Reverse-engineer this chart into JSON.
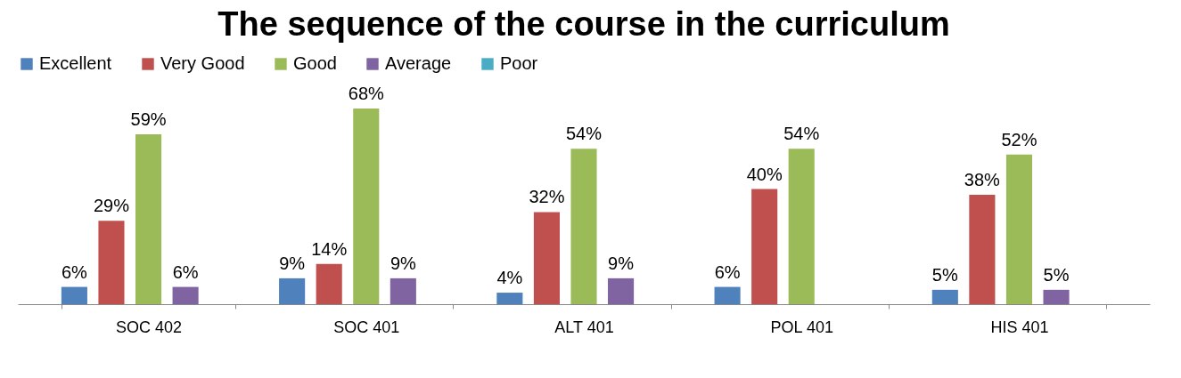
{
  "chart_data": {
    "type": "bar",
    "title": "The sequence of the course in the curriculum",
    "categories": [
      "SOC 402",
      "SOC 401",
      "ALT 401",
      "POL 401",
      "HIS 401"
    ],
    "series": [
      {
        "name": "Excellent",
        "color": "#4f81bd",
        "values": [
          6,
          9,
          4,
          6,
          5
        ],
        "value_labels": [
          "6%",
          "9%",
          "4%",
          "6%",
          "5%"
        ]
      },
      {
        "name": "Very Good",
        "color": "#c0504d",
        "values": [
          29,
          14,
          32,
          40,
          38
        ],
        "value_labels": [
          "29%",
          "14%",
          "32%",
          "40%",
          "38%"
        ]
      },
      {
        "name": "Good",
        "color": "#9bbb59",
        "values": [
          59,
          68,
          54,
          54,
          52
        ],
        "value_labels": [
          "59%",
          "68%",
          "54%",
          "54%",
          "52%"
        ]
      },
      {
        "name": "Average",
        "color": "#8064a2",
        "values": [
          6,
          9,
          9,
          null,
          5
        ],
        "value_labels": [
          "6%",
          "9%",
          "9%",
          null,
          "5%"
        ]
      },
      {
        "name": "Poor",
        "color": "#4bacc6",
        "values": [
          null,
          null,
          null,
          null,
          null
        ],
        "value_labels": [
          null,
          null,
          null,
          null,
          null
        ]
      }
    ],
    "legend": "top"
  }
}
